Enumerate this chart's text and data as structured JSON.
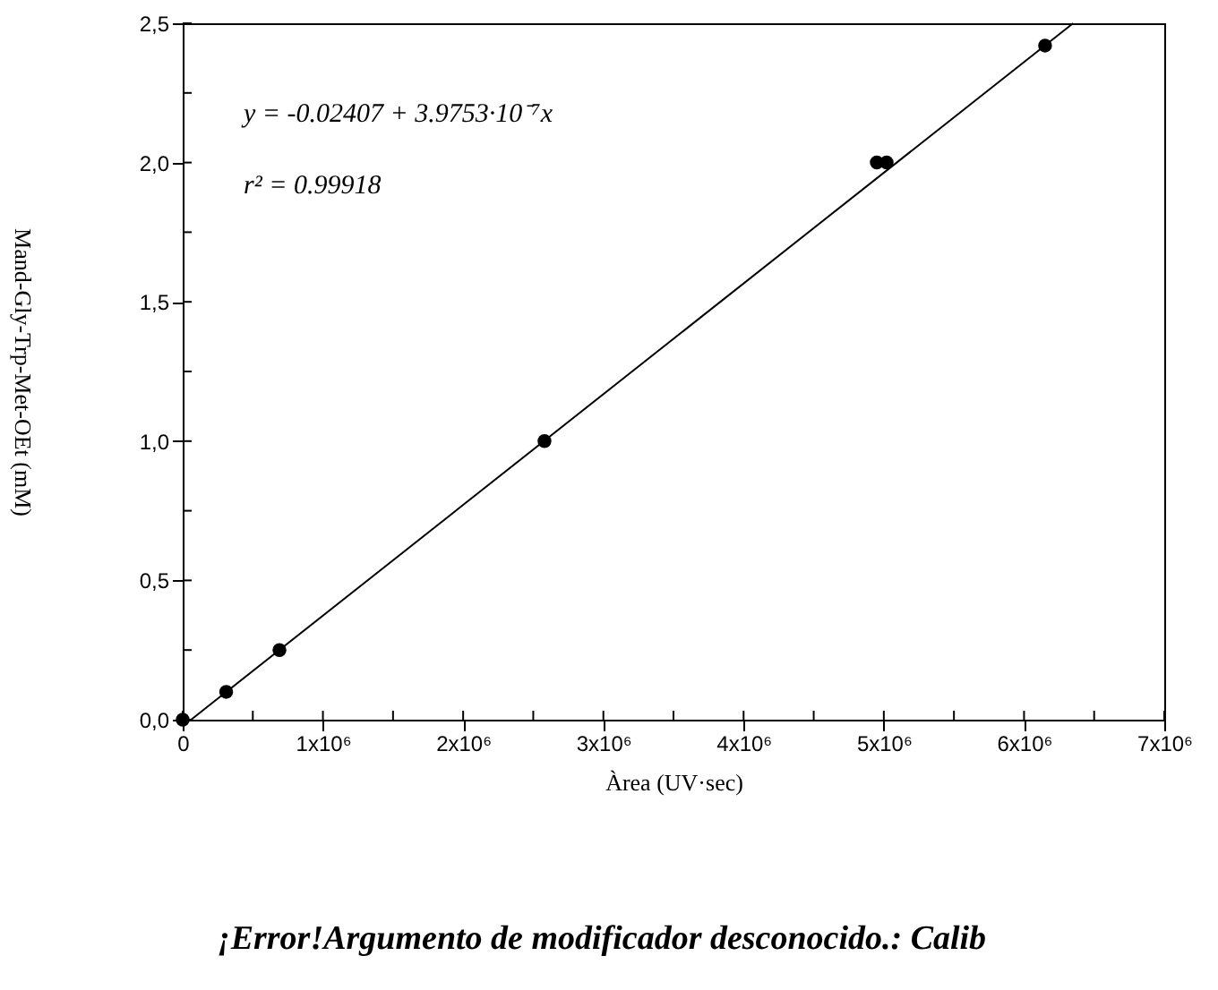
{
  "chart_data": {
    "type": "scatter",
    "xlabel": "Àrea (UV·sec)",
    "ylabel": "Mand-Gly-Trp-Met-OEt (mM)",
    "x": [
      0,
      310000,
      690000,
      2580000,
      4950000,
      5020000,
      6150000
    ],
    "series": [
      {
        "color": "#000000",
        "marker": "circle",
        "values": [
          0,
          0.1,
          0.25,
          1.0,
          2.0,
          2.0,
          2.42
        ]
      },
      {
        "type": "line",
        "color": "#000000",
        "marker": "none",
        "line_style": "solid",
        "x": [
          60000,
          6350000
        ],
        "values": [
          0,
          2.5
        ]
      }
    ],
    "xlim": [
      0,
      7000000
    ],
    "ylim": [
      0,
      2.5
    ],
    "xticks": [
      {
        "value": 0,
        "label": "0"
      },
      {
        "value": 500000,
        "label": null
      },
      {
        "value": 1000000,
        "label": "1x10⁶"
      },
      {
        "value": 1500000,
        "label": null
      },
      {
        "value": 2000000,
        "label": "2x10⁶"
      },
      {
        "value": 2500000,
        "label": null
      },
      {
        "value": 3000000,
        "label": "3x10⁶"
      },
      {
        "value": 3500000,
        "label": null
      },
      {
        "value": 4000000,
        "label": "4x10⁶"
      },
      {
        "value": 4500000,
        "label": null
      },
      {
        "value": 5000000,
        "label": "5x10⁶"
      },
      {
        "value": 5500000,
        "label": null
      },
      {
        "value": 6000000,
        "label": "6x10⁶"
      },
      {
        "value": 6500000,
        "label": null
      },
      {
        "value": 7000000,
        "label": "7x10⁶"
      }
    ],
    "yticks": [
      {
        "value": 0,
        "label": "0,0"
      },
      {
        "value": 0.25,
        "label": null
      },
      {
        "value": 0.5,
        "label": "0,5"
      },
      {
        "value": 0.75,
        "label": null
      },
      {
        "value": 1.0,
        "label": "1,0"
      },
      {
        "value": 1.25,
        "label": null
      },
      {
        "value": 1.5,
        "label": "1,5"
      },
      {
        "value": 1.75,
        "label": null
      },
      {
        "value": 2.0,
        "label": "2,0"
      },
      {
        "value": 2.25,
        "label": null
      },
      {
        "value": 2.5,
        "label": "2,5"
      }
    ],
    "grid": false,
    "annotations": [
      "y = -0.02407 + 3.9753·10⁻⁷x",
      "r² = 0.99918",
      "¡Error!Argumento de modificador desconocido.: Calib"
    ]
  }
}
